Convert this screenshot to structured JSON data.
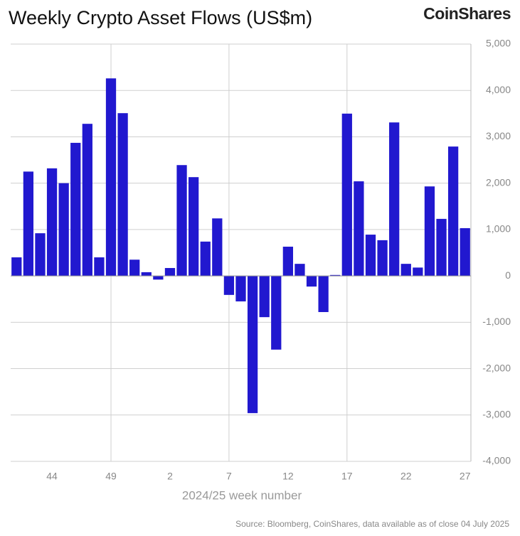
{
  "chart_data": {
    "type": "bar",
    "title": "Weekly Crypto Asset Flows (US$m)",
    "brand": "CoinShares",
    "x_label": "2024/25 week number",
    "source": "Source: Bloomberg, CoinShares, data available as of close 04 July 2025",
    "color": "#2118cf",
    "categories": [
      null,
      null,
      null,
      "44",
      null,
      null,
      null,
      null,
      "49",
      null,
      null,
      null,
      null,
      "2",
      null,
      null,
      null,
      null,
      "7",
      null,
      null,
      null,
      null,
      "12",
      null,
      null,
      null,
      null,
      "17",
      null,
      null,
      null,
      null,
      "22",
      null,
      null,
      null,
      null,
      "27"
    ],
    "values": [
      400,
      2250,
      920,
      2320,
      2000,
      2870,
      3280,
      400,
      4260,
      3510,
      350,
      80,
      -80,
      170,
      2390,
      2130,
      740,
      1240,
      -410,
      -550,
      -2960,
      -890,
      -1590,
      630,
      260,
      -230,
      -780,
      20,
      3500,
      2040,
      890,
      770,
      3310,
      260,
      180,
      1930,
      1230,
      2790,
      1030
    ],
    "ylim": [
      -4000,
      5000
    ],
    "yticks": [
      {
        "value": -4000,
        "label": "-4,000"
      },
      {
        "value": -3000,
        "label": "-3,000"
      },
      {
        "value": -2000,
        "label": "-2,000"
      },
      {
        "value": -1000,
        "label": "-1,000"
      },
      0,
      {
        "value": 1000,
        "label": "1,000"
      },
      {
        "value": 2000,
        "label": "2,000"
      },
      {
        "value": 3000,
        "label": "3,000"
      },
      {
        "value": 4000,
        "label": "4,000"
      },
      {
        "value": 5000,
        "label": "5,000"
      }
    ],
    "grid": true
  }
}
